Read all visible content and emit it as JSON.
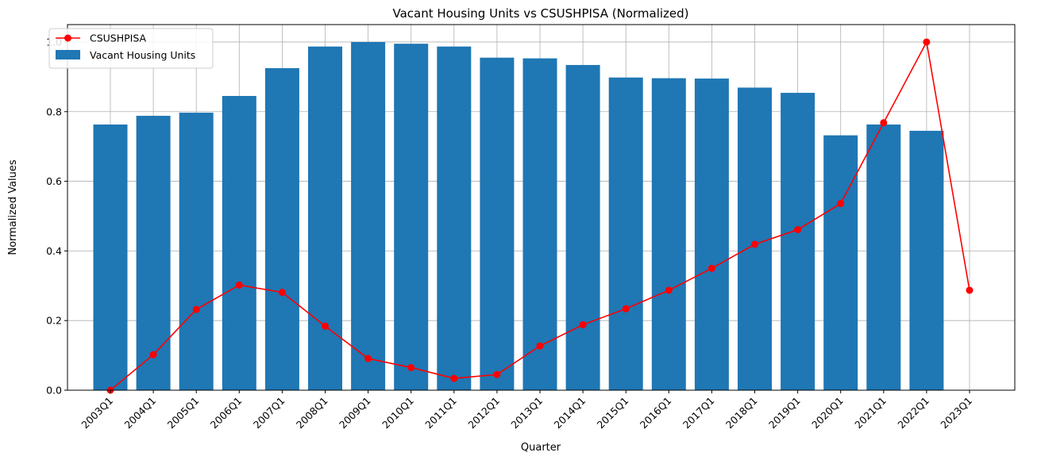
{
  "chart_data": {
    "type": "bar",
    "title": "Vacant Housing Units vs CSUSHPISA (Normalized)",
    "xlabel": "Quarter",
    "ylabel": "Normalized Values",
    "ylim": [
      0,
      1.05
    ],
    "yticks": [
      "0.0",
      "0.2",
      "0.4",
      "0.6",
      "0.8",
      "1.0"
    ],
    "categories": [
      "2003Q1",
      "2004Q1",
      "2005Q1",
      "2006Q1",
      "2007Q1",
      "2008Q1",
      "2009Q1",
      "2010Q1",
      "2011Q1",
      "2012Q1",
      "2013Q1",
      "2014Q1",
      "2015Q1",
      "2016Q1",
      "2017Q1",
      "2018Q1",
      "2019Q1",
      "2020Q1",
      "2021Q1",
      "2022Q1",
      "2023Q1"
    ],
    "grid": true,
    "legend_position": "upper-left",
    "series": [
      {
        "name": "CSUSHPISA",
        "kind": "line",
        "color": "#ff0000",
        "marker": "circle",
        "values": [
          0.0,
          0.102,
          0.232,
          0.302,
          0.281,
          0.184,
          0.091,
          0.065,
          0.034,
          0.045,
          0.127,
          0.188,
          0.234,
          0.287,
          0.35,
          0.419,
          0.461,
          0.536,
          0.768,
          1.0,
          0.287
        ]
      },
      {
        "name": "Vacant Housing Units",
        "kind": "bar",
        "color": "#1f77b4",
        "values": [
          0.763,
          0.788,
          0.797,
          0.845,
          0.925,
          0.987,
          1.0,
          0.995,
          0.987,
          0.955,
          0.953,
          0.934,
          0.898,
          0.896,
          0.895,
          0.869,
          0.854,
          0.732,
          0.763,
          0.745,
          null
        ]
      }
    ]
  }
}
